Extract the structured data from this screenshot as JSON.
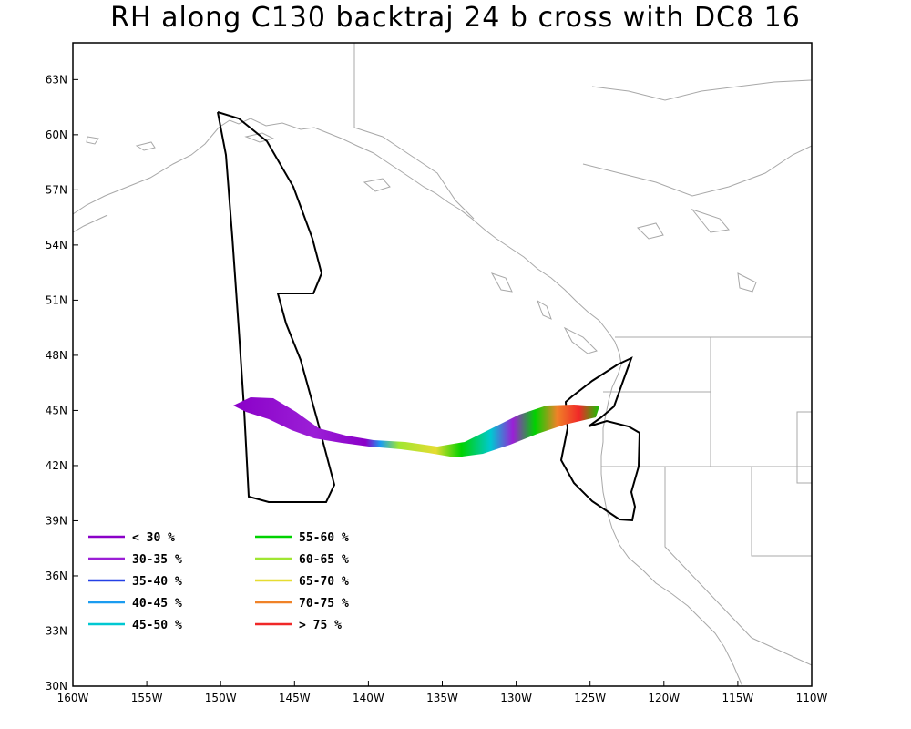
{
  "title": "RH along C130 backtraj 24 b cross with DC8 16",
  "chart_data": {
    "type": "map",
    "lon_range": [
      -160,
      -110
    ],
    "lat_range": [
      30,
      65
    ],
    "x_ticks": [
      "160W",
      "155W",
      "150W",
      "145W",
      "140W",
      "135W",
      "130W",
      "125W",
      "120W",
      "115W",
      "110W"
    ],
    "y_ticks": [
      "30N",
      "33N",
      "36N",
      "39N",
      "42N",
      "45N",
      "48N",
      "51N",
      "54N",
      "57N",
      "60N",
      "63N"
    ],
    "legend": [
      {
        "label": "< 30 %",
        "color": "#8a00c8"
      },
      {
        "label": "30-35 %",
        "color": "#9b1fd6"
      },
      {
        "label": "35-40 %",
        "color": "#2440e6"
      },
      {
        "label": "40-45 %",
        "color": "#1b9cf0"
      },
      {
        "label": "45-50 %",
        "color": "#00c8d2"
      },
      {
        "label": "55-60 %",
        "color": "#00d200"
      },
      {
        "label": "60-65 %",
        "color": "#a0e632"
      },
      {
        "label": "65-70 %",
        "color": "#e6dc32"
      },
      {
        "label": "70-75 %",
        "color": "#f08228"
      },
      {
        "label": "> 75 %",
        "color": "#f02828"
      }
    ],
    "colors": {
      "coast": "#a8a8a8",
      "flight_track": "#000000",
      "frame": "#000000"
    }
  }
}
